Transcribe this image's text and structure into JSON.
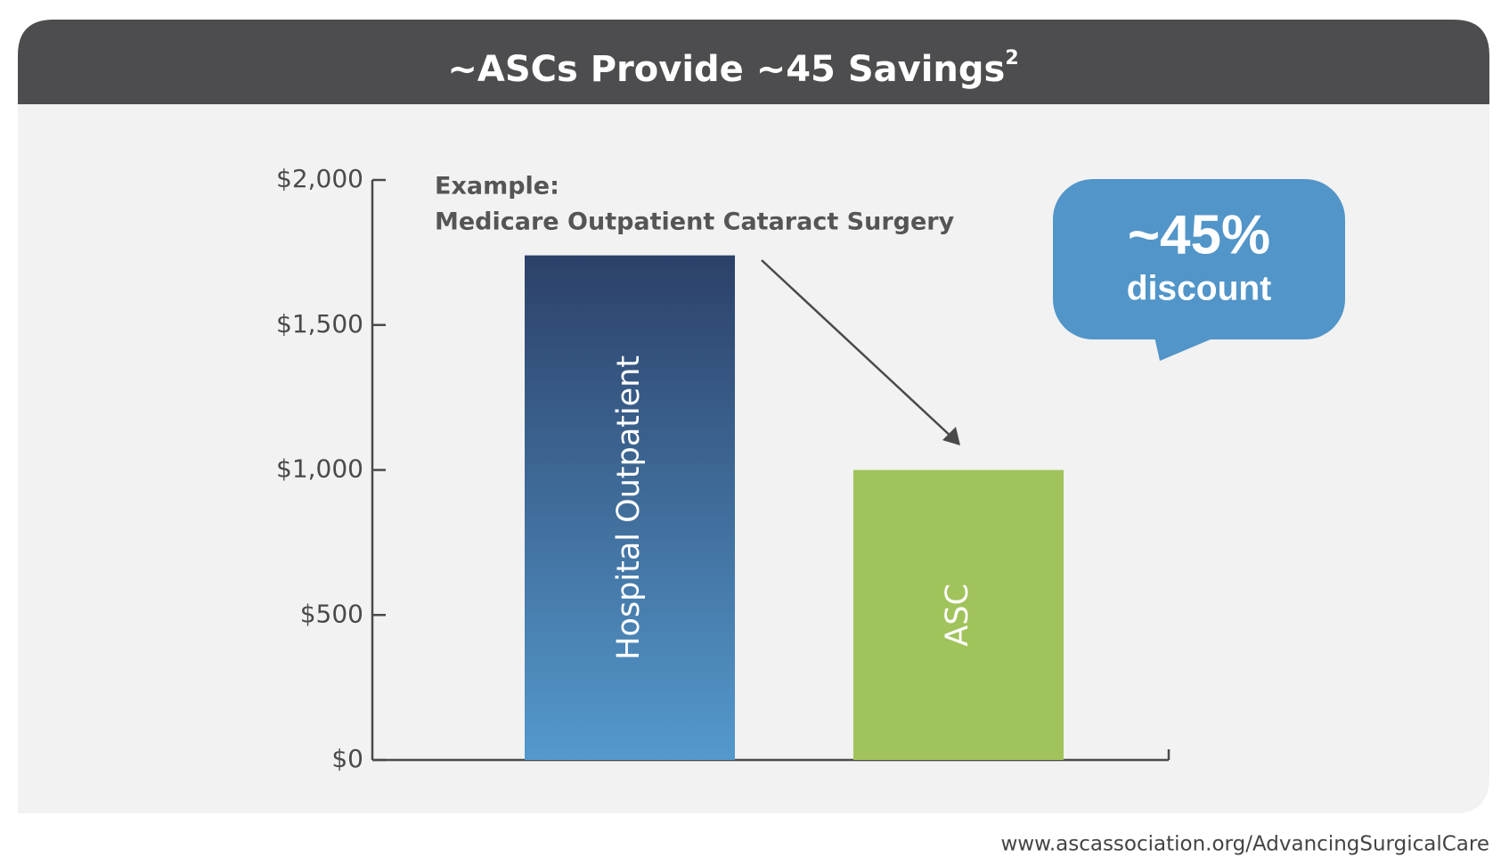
{
  "chart_data": {
    "type": "bar",
    "title": "~ASCs Provide ~45 Savings",
    "title_note": "2",
    "annotation": [
      "Example:",
      "Medicare Outpatient Cataract Surgery"
    ],
    "callout": {
      "value": "~45%",
      "label": "discount"
    },
    "categories": [
      "Hospital Outpatient",
      "ASC"
    ],
    "values": [
      1740,
      1000
    ],
    "bar_gradients": [
      {
        "top": "#2c4169",
        "bottom": "#5499cd"
      },
      {
        "top": "#a1c35b",
        "bottom": "#a1c35b"
      }
    ],
    "ylim": [
      0,
      2000
    ],
    "yticks": [
      {
        "value": 0,
        "label": "$0"
      },
      {
        "value": 500,
        "label": "$500"
      },
      {
        "value": 1000,
        "label": "$1,000"
      },
      {
        "value": 1500,
        "label": "$1,500"
      },
      {
        "value": 2000,
        "label": "$2,000"
      }
    ],
    "grid": false,
    "source": "www.ascassociation.org/AdvancingSurgicalCare"
  }
}
